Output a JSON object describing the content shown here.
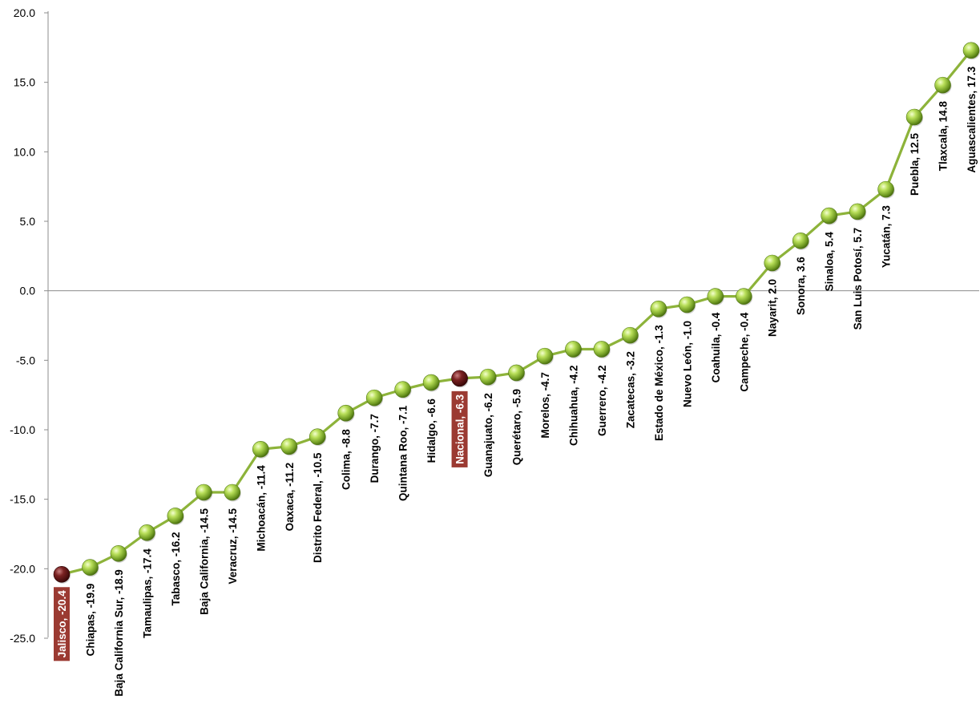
{
  "chart_data": {
    "type": "line",
    "title": "",
    "xlabel": "",
    "ylabel": "",
    "ylim": [
      -25,
      20
    ],
    "yticks": [
      20.0,
      15.0,
      10.0,
      5.0,
      0.0,
      -5.0,
      -10.0,
      -15.0,
      -20.0,
      -25.0
    ],
    "ytick_labels": [
      "20.0",
      "15.0",
      "10.0",
      "5.0",
      "0.0",
      "-5.0",
      "-10.0",
      "-15.0",
      "-20.0",
      "-25.0"
    ],
    "grid": false,
    "line_color": "#8db33a",
    "marker_color": "#9ccc3c",
    "highlight_marker_color": "#6b1c1c",
    "highlight_label_bg": "#9b3a32",
    "points": [
      {
        "label": "Jalisco, -20.4",
        "value": -20.4,
        "highlight": true
      },
      {
        "label": "Chiapas, -19.9",
        "value": -19.9
      },
      {
        "label": "Baja California Sur, -18.9",
        "value": -18.9
      },
      {
        "label": "Tamaulipas, -17.4",
        "value": -17.4
      },
      {
        "label": "Tabasco, -16.2",
        "value": -16.2
      },
      {
        "label": "Baja California, -14.5",
        "value": -14.5
      },
      {
        "label": "Veracruz, -14.5",
        "value": -14.5
      },
      {
        "label": "Michoacán, -11.4",
        "value": -11.4
      },
      {
        "label": "Oaxaca, -11.2",
        "value": -11.2
      },
      {
        "label": "Distrito Federal, -10.5",
        "value": -10.5
      },
      {
        "label": "Colima, -8.8",
        "value": -8.8
      },
      {
        "label": "Durango, -7.7",
        "value": -7.7
      },
      {
        "label": "Quintana Roo, -7.1",
        "value": -7.1
      },
      {
        "label": "Hidalgo, -6.6",
        "value": -6.6
      },
      {
        "label": "Nacional, -6.3",
        "value": -6.3,
        "highlight": true
      },
      {
        "label": "Guanajuato, -6.2",
        "value": -6.2
      },
      {
        "label": "Querétaro, -5.9",
        "value": -5.9
      },
      {
        "label": "Morelos, -4.7",
        "value": -4.7
      },
      {
        "label": "Chihuahua, -4.2",
        "value": -4.2
      },
      {
        "label": "Guerrero, -4.2",
        "value": -4.2
      },
      {
        "label": "Zacatecas, -3.2",
        "value": -3.2
      },
      {
        "label": "Estado de México, -1.3",
        "value": -1.3
      },
      {
        "label": "Nuevo León, -1.0",
        "value": -1.0
      },
      {
        "label": "Coahuila, -0.4",
        "value": -0.4
      },
      {
        "label": "Campeche, -0.4",
        "value": -0.4
      },
      {
        "label": "Nayarit, 2.0",
        "value": 2.0
      },
      {
        "label": "Sonora, 3.6",
        "value": 3.6
      },
      {
        "label": "Sinaloa, 5.4",
        "value": 5.4
      },
      {
        "label": "San Luis Potosí, 5.7",
        "value": 5.7
      },
      {
        "label": "Yucatán, 7.3",
        "value": 7.3
      },
      {
        "label": "Puebla, 12.5",
        "value": 12.5
      },
      {
        "label": "Tlaxcala, 14.8",
        "value": 14.8
      },
      {
        "label": "Aguascalientes, 17.3",
        "value": 17.3
      }
    ]
  }
}
